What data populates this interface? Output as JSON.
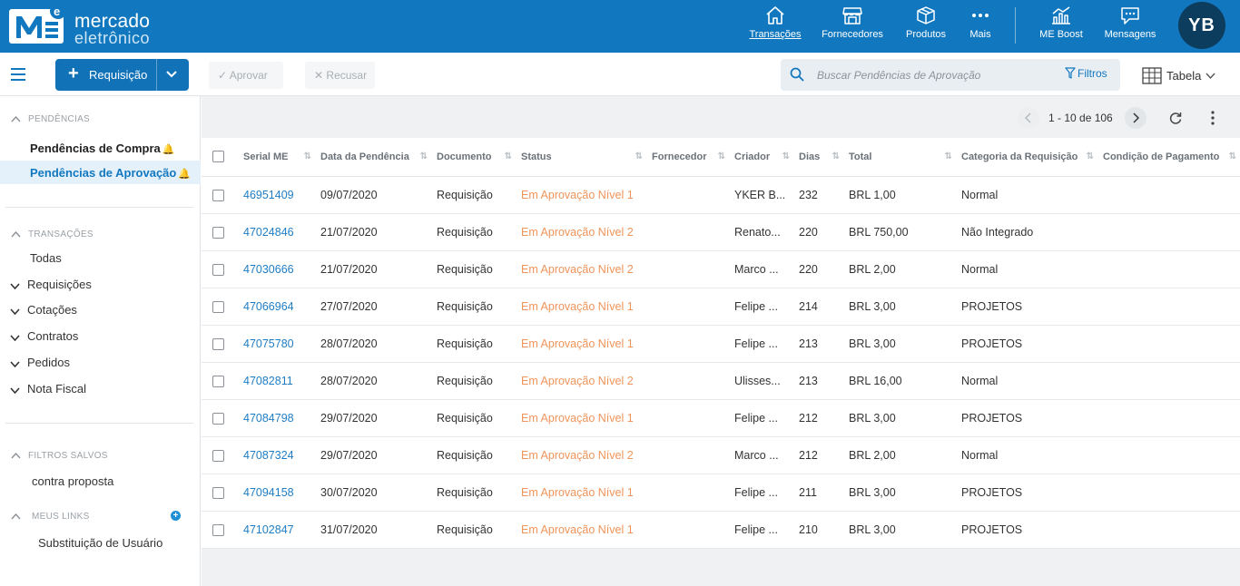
{
  "brand": {
    "line1": "mercado",
    "line2": "eletrônico"
  },
  "nav": {
    "items": [
      {
        "label": "Transações",
        "icon": "home-icon"
      },
      {
        "label": "Fornecedores",
        "icon": "store-icon"
      },
      {
        "label": "Produtos",
        "icon": "box-icon"
      },
      {
        "label": "Mais",
        "icon": "more-dots-icon"
      },
      {
        "label": "ME Boost",
        "icon": "chart-icon"
      },
      {
        "label": "Mensagens",
        "icon": "message-icon"
      }
    ],
    "avatar": "YB",
    "active": "Transações"
  },
  "toolbar": {
    "new_label": "Requisição",
    "approve_label": "Aprovar",
    "reject_label": "Recusar",
    "search_placeholder": "Buscar Pendências de Aprovação",
    "filters_label": "Filtros",
    "view_label": "Tabela"
  },
  "sidebar": {
    "pending_header": "PENDÊNCIAS",
    "pending_purchase": "Pendências de Compra",
    "pending_approval": "Pendências de Aprovação",
    "transactions_header": "TRANSAÇÕES",
    "all": "Todas",
    "groups": [
      "Requisições",
      "Cotações",
      "Contratos",
      "Pedidos",
      "Nota Fiscal"
    ],
    "saved_filters_header": "FILTROS SALVOS",
    "saved_filter": "contra proposta",
    "my_links_header": "MEUS LINKS",
    "my_link": "Substituição de Usuário"
  },
  "pagination": {
    "range": "1 - 10 de 106"
  },
  "table": {
    "headers": [
      "Serial ME",
      "Data da Pendência",
      "Documento",
      "Status",
      "Fornecedor",
      "Criador",
      "Dias",
      "Total",
      "Categoria da Requisição",
      "Condição de Pagamento"
    ],
    "rows": [
      {
        "serial": "46951409",
        "date": "09/07/2020",
        "doc": "Requisição",
        "status": "Em Aprovação Nível 1",
        "supplier": "",
        "creator": "YKER B...",
        "days": "232",
        "total": "BRL 1,00",
        "category": "Normal",
        "payment": ""
      },
      {
        "serial": "47024846",
        "date": "21/07/2020",
        "doc": "Requisição",
        "status": "Em Aprovação Nível 2",
        "supplier": "",
        "creator": "Renato...",
        "days": "220",
        "total": "BRL 750,00",
        "category": "Não Integrado",
        "payment": ""
      },
      {
        "serial": "47030666",
        "date": "21/07/2020",
        "doc": "Requisição",
        "status": "Em Aprovação Nível 2",
        "supplier": "",
        "creator": "Marco ...",
        "days": "220",
        "total": "BRL 2,00",
        "category": "Normal",
        "payment": ""
      },
      {
        "serial": "47066964",
        "date": "27/07/2020",
        "doc": "Requisição",
        "status": "Em Aprovação Nível 1",
        "supplier": "",
        "creator": "Felipe ...",
        "days": "214",
        "total": "BRL 3,00",
        "category": "PROJETOS",
        "payment": ""
      },
      {
        "serial": "47075780",
        "date": "28/07/2020",
        "doc": "Requisição",
        "status": "Em Aprovação Nível 1",
        "supplier": "",
        "creator": "Felipe ...",
        "days": "213",
        "total": "BRL 3,00",
        "category": "PROJETOS",
        "payment": ""
      },
      {
        "serial": "47082811",
        "date": "28/07/2020",
        "doc": "Requisição",
        "status": "Em Aprovação Nível 2",
        "supplier": "",
        "creator": "Ulisses...",
        "days": "213",
        "total": "BRL 16,00",
        "category": "Normal",
        "payment": ""
      },
      {
        "serial": "47084798",
        "date": "29/07/2020",
        "doc": "Requisição",
        "status": "Em Aprovação Nível 1",
        "supplier": "",
        "creator": "Felipe ...",
        "days": "212",
        "total": "BRL 3,00",
        "category": "PROJETOS",
        "payment": ""
      },
      {
        "serial": "47087324",
        "date": "29/07/2020",
        "doc": "Requisição",
        "status": "Em Aprovação Nível 2",
        "supplier": "",
        "creator": "Marco ...",
        "days": "212",
        "total": "BRL 2,00",
        "category": "Normal",
        "payment": ""
      },
      {
        "serial": "47094158",
        "date": "30/07/2020",
        "doc": "Requisição",
        "status": "Em Aprovação Nível 1",
        "supplier": "",
        "creator": "Felipe ...",
        "days": "211",
        "total": "BRL 3,00",
        "category": "PROJETOS",
        "payment": ""
      },
      {
        "serial": "47102847",
        "date": "31/07/2020",
        "doc": "Requisição",
        "status": "Em Aprovação Nível 1",
        "supplier": "",
        "creator": "Felipe ...",
        "days": "210",
        "total": "BRL 3,00",
        "category": "PROJETOS",
        "payment": ""
      }
    ]
  },
  "colors": {
    "brand_blue": "#1178bf",
    "status_orange": "#f0945a",
    "link_blue": "#1f7dc4",
    "avatar_bg": "#0c3d5e"
  }
}
